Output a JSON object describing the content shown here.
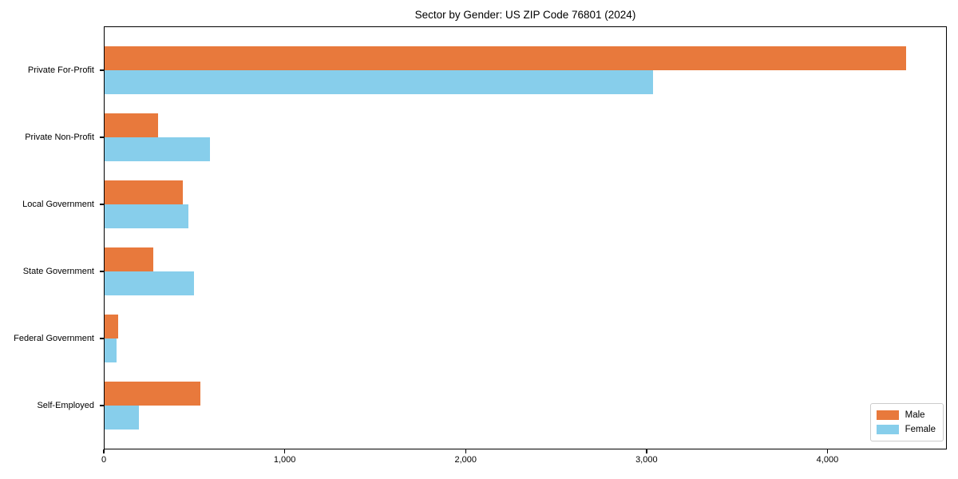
{
  "chart_data": {
    "type": "bar",
    "orientation": "horizontal",
    "title": "Sector by Gender: US ZIP Code 76801 (2024)",
    "categories": [
      "Private For-Profit",
      "Private Non-Profit",
      "Local Government",
      "State Government",
      "Federal Government",
      "Self-Employed"
    ],
    "series": [
      {
        "name": "Male",
        "color": "#E8793C",
        "values": [
          4437,
          299,
          437,
          273,
          79,
          534
        ]
      },
      {
        "name": "Female",
        "color": "#87CEEB",
        "values": [
          3036,
          588,
          468,
          497,
          71,
          195
        ]
      }
    ],
    "xlabel": "",
    "ylabel": "",
    "xlim": [
      0,
      4660
    ],
    "x_ticks": [
      0,
      1000,
      2000,
      3000,
      4000
    ],
    "x_tick_labels": [
      "0",
      "1,000",
      "2,000",
      "3,000",
      "4,000"
    ],
    "legend_position": "lower right",
    "grid": false
  }
}
